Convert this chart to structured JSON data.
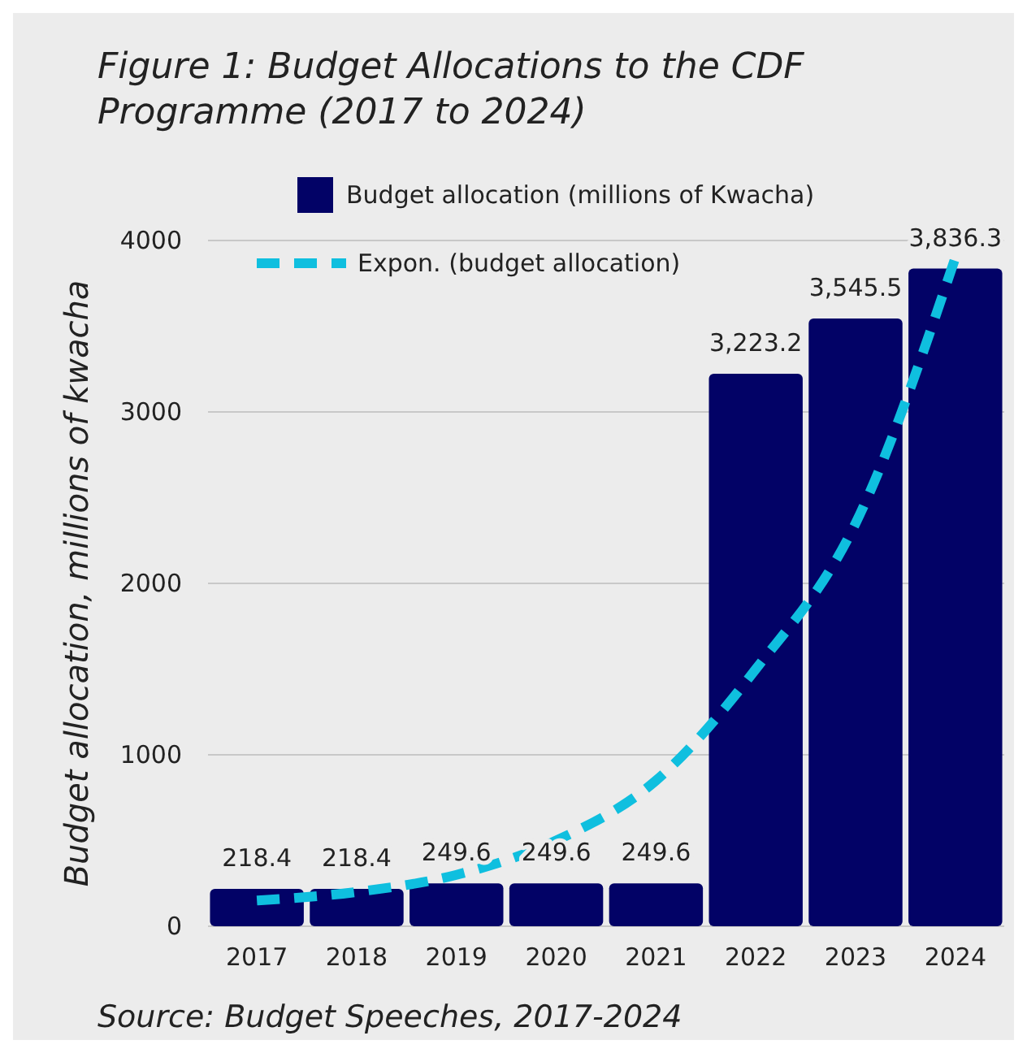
{
  "chart_data": {
    "type": "bar",
    "title": "Figure 1: Budget Allocations to the CDF Programme (2017 to 2024)",
    "ylabel": "Budget allocation, millions of kwacha",
    "categories": [
      "2017",
      "2018",
      "2019",
      "2020",
      "2021",
      "2022",
      "2023",
      "2024"
    ],
    "series": [
      {
        "name": "Budget allocation (millions of Kwacha)",
        "color": "#020266",
        "values": [
          218.4,
          218.4,
          249.6,
          249.6,
          249.6,
          3223.2,
          3545.5,
          3836.3
        ],
        "value_labels": [
          "218.4",
          "218.4",
          "249.6",
          "249.6",
          "249.6",
          "3,223.2",
          "3,545.5",
          "3,836.3"
        ]
      },
      {
        "name": "Expon. (budget allocation)",
        "type": "line",
        "color": "#0fbfdf",
        "line_style": "dashed",
        "marker": "none",
        "values": [
          150,
          200,
          300,
          500,
          850,
          1500,
          2350,
          3900
        ]
      }
    ],
    "ylim": [
      0,
      4000
    ],
    "yticks": [
      0,
      1000,
      2000,
      3000,
      4000
    ],
    "grid": "y",
    "legend": "top",
    "annotations": [
      "Source: Budget Speeches, 2017-2024"
    ]
  }
}
